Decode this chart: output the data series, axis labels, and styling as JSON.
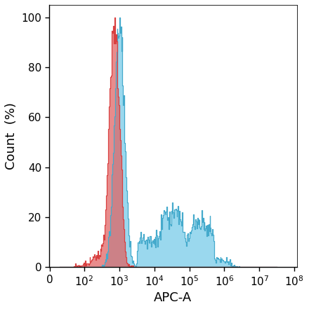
{
  "title": "",
  "xlabel": "APC-A",
  "ylabel": "Count  (%)",
  "ylim": [
    0,
    105
  ],
  "yticks": [
    0,
    20,
    40,
    60,
    80,
    100
  ],
  "red_color": "#D94040",
  "red_fill": "#E06060",
  "blue_color": "#45AACC",
  "blue_fill": "#70C8E8",
  "background_color": "#ffffff",
  "xlabel_fontsize": 13,
  "ylabel_fontsize": 13,
  "tick_fontsize": 11
}
